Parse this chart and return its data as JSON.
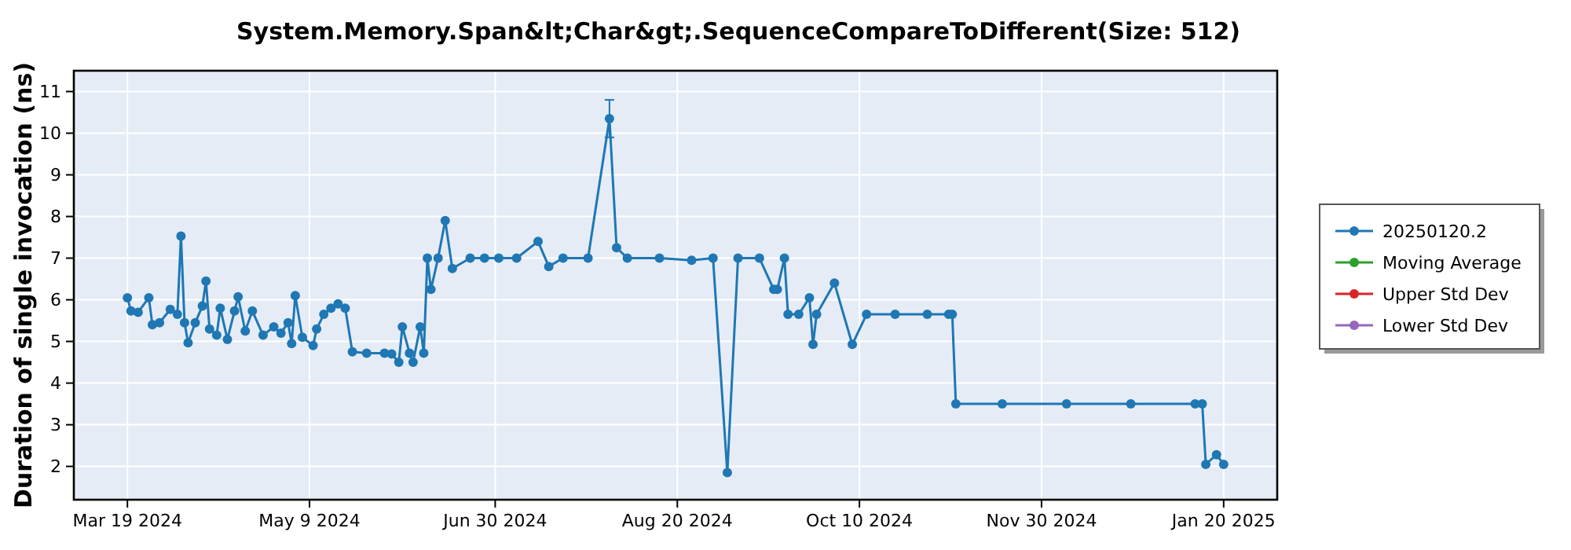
{
  "chart_data": {
    "type": "line",
    "title": "System.Memory.Span&lt;Char&gt;.SequenceCompareToDifferent(Size: 512)",
    "ylabel": "Duration of single invocation (ns)",
    "xlim": [
      "2024-03-04",
      "2025-02-04"
    ],
    "xticks": [
      {
        "value": "2024-03-19",
        "label": "Mar 19 2024"
      },
      {
        "value": "2024-05-09",
        "label": "May 9 2024"
      },
      {
        "value": "2024-06-30",
        "label": "Jun 30 2024"
      },
      {
        "value": "2024-08-20",
        "label": "Aug 20 2024"
      },
      {
        "value": "2024-10-10",
        "label": "Oct 10 2024"
      },
      {
        "value": "2024-11-30",
        "label": "Nov 30 2024"
      },
      {
        "value": "2025-01-20",
        "label": "Jan 20 2025"
      }
    ],
    "ylim": [
      1.2,
      11.5
    ],
    "yticks": [
      2,
      3,
      4,
      5,
      6,
      7,
      8,
      9,
      10,
      11
    ],
    "grid": true,
    "legend": "right",
    "marker": "circle",
    "line_style": "solid",
    "series": [
      {
        "name": "20250120.2",
        "color": "#1f77b4",
        "x": [
          "2024-03-19",
          "2024-03-20",
          "2024-03-22",
          "2024-03-25",
          "2024-03-26",
          "2024-03-28",
          "2024-03-31",
          "2024-04-02",
          "2024-04-03",
          "2024-04-04",
          "2024-04-05",
          "2024-04-07",
          "2024-04-09",
          "2024-04-10",
          "2024-04-11",
          "2024-04-13",
          "2024-04-14",
          "2024-04-16",
          "2024-04-18",
          "2024-04-19",
          "2024-04-21",
          "2024-04-23",
          "2024-04-26",
          "2024-04-29",
          "2024-05-01",
          "2024-05-03",
          "2024-05-04",
          "2024-05-05",
          "2024-05-07",
          "2024-05-10",
          "2024-05-11",
          "2024-05-13",
          "2024-05-15",
          "2024-05-17",
          "2024-05-19",
          "2024-05-21",
          "2024-05-25",
          "2024-05-30",
          "2024-06-01",
          "2024-06-03",
          "2024-06-04",
          "2024-06-06",
          "2024-06-07",
          "2024-06-09",
          "2024-06-10",
          "2024-06-11",
          "2024-06-12",
          "2024-06-14",
          "2024-06-16",
          "2024-06-18",
          "2024-06-23",
          "2024-06-27",
          "2024-07-01",
          "2024-07-06",
          "2024-07-12",
          "2024-07-15",
          "2024-07-19",
          "2024-07-26",
          "2024-08-01",
          "2024-08-03",
          "2024-08-06",
          "2024-08-15",
          "2024-08-24",
          "2024-08-30",
          "2024-09-03",
          "2024-09-06",
          "2024-09-12",
          "2024-09-16",
          "2024-09-17",
          "2024-09-19",
          "2024-09-20",
          "2024-09-23",
          "2024-09-26",
          "2024-09-27",
          "2024-09-28",
          "2024-10-03",
          "2024-10-08",
          "2024-10-12",
          "2024-10-20",
          "2024-10-29",
          "2024-11-04",
          "2024-11-05",
          "2024-11-06",
          "2024-11-19",
          "2024-12-07",
          "2024-12-25",
          "2025-01-12",
          "2025-01-14",
          "2025-01-15",
          "2025-01-18",
          "2025-01-20"
        ],
        "values": [
          6.05,
          5.73,
          5.7,
          6.05,
          5.4,
          5.45,
          5.77,
          5.65,
          7.53,
          5.45,
          4.97,
          5.45,
          5.85,
          6.45,
          5.3,
          5.15,
          5.8,
          5.05,
          5.73,
          6.07,
          5.25,
          5.73,
          5.15,
          5.35,
          5.2,
          5.45,
          4.95,
          6.1,
          5.1,
          4.9,
          5.3,
          5.65,
          5.8,
          5.9,
          5.8,
          4.75,
          4.72,
          4.72,
          4.7,
          4.5,
          5.35,
          4.72,
          4.5,
          5.35,
          4.72,
          7.0,
          6.25,
          7.0,
          7.9,
          6.75,
          7.0,
          7.0,
          7.0,
          7.0,
          7.4,
          6.8,
          7.0,
          7.0,
          10.35,
          7.25,
          7.0,
          7.0,
          6.95,
          7.0,
          1.85,
          7.0,
          7.0,
          6.25,
          6.25,
          7.0,
          5.65,
          5.65,
          6.05,
          4.93,
          5.65,
          6.4,
          4.93,
          5.65,
          5.65,
          5.65,
          5.65,
          5.65,
          3.5,
          3.5,
          3.5,
          3.5,
          3.5,
          3.5,
          2.05,
          2.28,
          2.05
        ],
        "errors": [
          null,
          null,
          null,
          null,
          null,
          null,
          null,
          null,
          null,
          null,
          null,
          null,
          null,
          null,
          null,
          null,
          null,
          null,
          null,
          null,
          null,
          null,
          null,
          null,
          null,
          null,
          null,
          null,
          null,
          null,
          null,
          null,
          null,
          null,
          null,
          null,
          null,
          null,
          null,
          null,
          null,
          null,
          null,
          null,
          null,
          null,
          null,
          null,
          null,
          null,
          null,
          null,
          null,
          null,
          null,
          null,
          null,
          null,
          [
            9.9,
            10.8
          ],
          null,
          null,
          null,
          null,
          null,
          null,
          null,
          null,
          null,
          null,
          null,
          null,
          null,
          null,
          null,
          null,
          null,
          null,
          null,
          null,
          null,
          null,
          null,
          null,
          null,
          null,
          null,
          null,
          null,
          null,
          null,
          null
        ]
      },
      {
        "name": "Moving Average",
        "color": "#2ca02c"
      },
      {
        "name": "Upper Std Dev",
        "color": "#d62728"
      },
      {
        "name": "Lower Std Dev",
        "color": "#9467bd"
      }
    ]
  }
}
